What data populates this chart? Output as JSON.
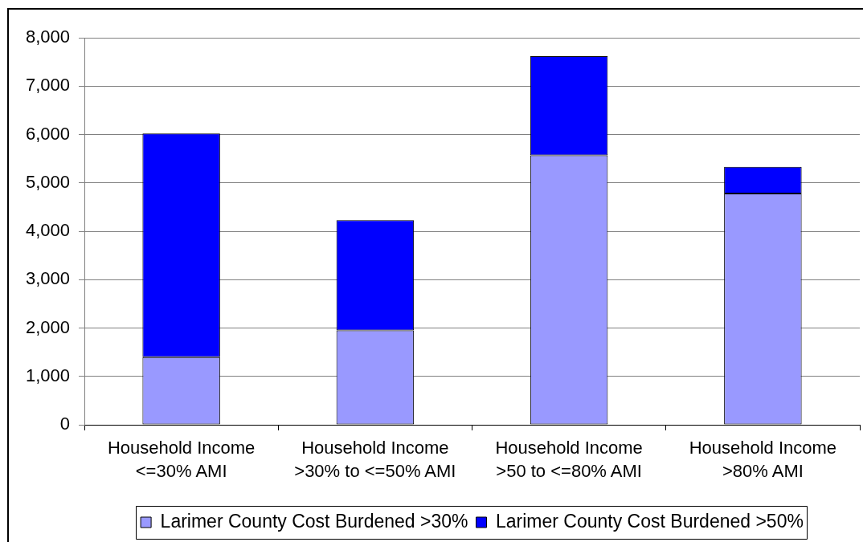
{
  "chart_data": {
    "type": "bar",
    "categories": [
      "Household Income <=30% AMI",
      "Household Income >30% to <=50% AMI",
      "Household Income >50 to <=80% AMI",
      "Household Income >80% AMI"
    ],
    "series": [
      {
        "name": "Larimer County Cost Burdened >30%",
        "color": "#9999ff",
        "values": [
          1400,
          1950,
          5570,
          4780
        ]
      },
      {
        "name": "Larimer County Cost Burdened >50%",
        "color": "#0000ff",
        "values": [
          4620,
          2280,
          2050,
          550
        ]
      }
    ],
    "stacked": true,
    "ylim": [
      0,
      8000
    ],
    "yticks": [
      0,
      {
        "value": 1000,
        "label": "1,000"
      },
      {
        "value": 2000,
        "label": "2,000"
      },
      {
        "value": 3000,
        "label": "3,000"
      },
      {
        "value": 4000,
        "label": "4,000"
      },
      {
        "value": 5000,
        "label": "5,000"
      },
      {
        "value": 6000,
        "label": "6,000"
      },
      {
        "value": 7000,
        "label": "7,000"
      },
      {
        "value": 8000,
        "label": "8,000"
      }
    ],
    "grid": "y",
    "legend": "bottom"
  }
}
